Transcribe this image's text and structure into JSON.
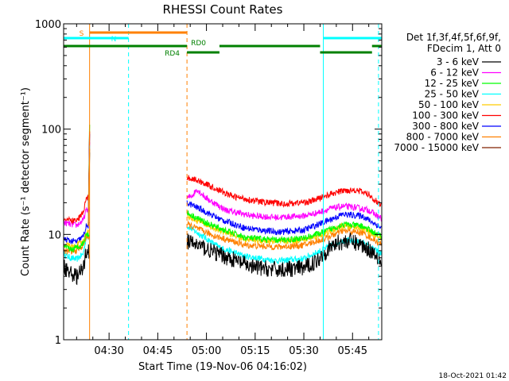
{
  "chart_data": {
    "type": "line",
    "title": "RHESSI Count Rates",
    "xlabel": "Start Time (19-Nov-06 04:16:02)",
    "ylabel": "Count Rate (s⁻¹ detector segment⁻¹)",
    "ylog": true,
    "ylim": [
      1,
      1000
    ],
    "xlim_minutes": [
      0,
      98
    ],
    "x_ticks": [
      "04:30",
      "04:45",
      "05:00",
      "05:15",
      "05:30",
      "05:45"
    ],
    "y_ticks": [
      "1",
      "10",
      "100",
      "1000"
    ],
    "legend_header": [
      "Det 1f,3f,4f,5f,6f,9f,",
      "FDecim 1, Att 0"
    ],
    "legend_position": "top-right, outside plot",
    "timestamp": "18-Oct-2021 01:42",
    "data_gap_minutes": [
      8,
      38
    ],
    "series": [
      {
        "name": "3 - 6 keV",
        "color": "#000000",
        "x": [
          0,
          2,
          4,
          6,
          7,
          38,
          42,
          46,
          52,
          58,
          66,
          74,
          78,
          80,
          84,
          88,
          92,
          96,
          98
        ],
        "y": [
          5,
          4.3,
          4.0,
          4.6,
          7,
          8.6,
          7.8,
          6.8,
          5.8,
          4.9,
          4.6,
          4.8,
          5.6,
          6.6,
          8.3,
          8.7,
          7.9,
          6.6,
          5.6
        ]
      },
      {
        "name": "6 - 12 keV",
        "color": "#ff00ff",
        "x": [
          0,
          2,
          4,
          6,
          7,
          38,
          40,
          41,
          44,
          50,
          58,
          66,
          74,
          78,
          82,
          86,
          90,
          94,
          98
        ],
        "y": [
          13,
          12.5,
          12.2,
          13.5,
          17,
          22,
          24,
          27,
          22,
          17,
          15,
          14.5,
          15,
          16,
          17.5,
          18.5,
          18,
          17,
          14
        ]
      },
      {
        "name": "12 - 25 keV",
        "color": "#00ff00",
        "x": [
          0,
          3,
          6,
          7,
          38,
          46,
          56,
          66,
          74,
          80,
          86,
          92,
          98
        ],
        "y": [
          7.5,
          7.2,
          8.2,
          10,
          16,
          12,
          9.3,
          8.8,
          9.2,
          10.5,
          12.5,
          12,
          9.5
        ]
      },
      {
        "name": "25 - 50 keV",
        "color": "#00ffff",
        "x": [
          0,
          2,
          4,
          6,
          7,
          38,
          42,
          48,
          56,
          66,
          74,
          80,
          86,
          92,
          98
        ],
        "y": [
          6.5,
          6.0,
          5.8,
          6.5,
          9.5,
          12,
          10,
          7.5,
          6.2,
          5.6,
          5.9,
          7.2,
          8.8,
          8.4,
          6.5
        ]
      },
      {
        "name": "50 - 100 keV",
        "color": "#ffcc00",
        "x": [
          0,
          3,
          6,
          7,
          38,
          46,
          56,
          66,
          74,
          80,
          86,
          92,
          98
        ],
        "y": [
          8,
          7.6,
          8.5,
          10.5,
          15,
          11.5,
          9,
          8.5,
          8.9,
          10,
          12,
          11.5,
          9
        ]
      },
      {
        "name": "100 - 300 keV",
        "color": "#ff0000",
        "x": [
          0,
          2,
          4,
          6,
          7,
          38,
          42,
          44,
          46,
          52,
          60,
          68,
          76,
          82,
          86,
          90,
          94,
          98
        ],
        "y": [
          14,
          13.5,
          13.5,
          16,
          22,
          35,
          32,
          30,
          28,
          23,
          20.5,
          19.5,
          20.5,
          24,
          26,
          26.5,
          24,
          18.5
        ]
      },
      {
        "name": "300 - 800 keV",
        "color": "#0000ff",
        "x": [
          0,
          2,
          4,
          6,
          7,
          38,
          42,
          48,
          56,
          66,
          74,
          80,
          86,
          92,
          98
        ],
        "y": [
          9,
          8.7,
          8.5,
          9.5,
          12,
          20,
          17.5,
          14,
          11.5,
          10.5,
          11,
          13,
          15.5,
          15,
          11.5
        ]
      },
      {
        "name": "800 - 7000 keV",
        "color": "#ff8000",
        "x": [
          0,
          3,
          6,
          7,
          38,
          46,
          56,
          66,
          74,
          80,
          86,
          92,
          98
        ],
        "y": [
          7,
          6.8,
          7.8,
          9.5,
          12.5,
          9.8,
          7.9,
          7.6,
          7.9,
          9,
          10.8,
          10.4,
          8
        ]
      },
      {
        "name": "7000 - 15000 keV",
        "color": "#802000",
        "x": [
          0,
          6
        ],
        "y": [
          1,
          1
        ]
      }
    ],
    "attenuator_bars": [
      {
        "label": "S",
        "color": "#ff8000",
        "row": 1,
        "start": 8,
        "end": 38
      },
      {
        "label": "N",
        "color": "#00ffff",
        "row": 2,
        "start": 0,
        "end": 20
      },
      {
        "label": "",
        "color": "#00ffff",
        "row": 2,
        "start": 80,
        "end": 98
      },
      {
        "label": "RD0",
        "color": "#008000",
        "row": 3,
        "start": 0,
        "end": 38
      },
      {
        "label": "",
        "color": "#008000",
        "row": 3,
        "start": 48,
        "end": 79
      },
      {
        "label": "RD4",
        "color": "#008000",
        "row": 4,
        "start": 38,
        "end": 48
      },
      {
        "label": "",
        "color": "#008000",
        "row": 4,
        "start": 79,
        "end": 95
      },
      {
        "label": "",
        "color": "#008000",
        "row": 3,
        "start": 95,
        "end": 98
      }
    ],
    "vlines": [
      {
        "x": 0,
        "color": "#00ffff",
        "dash": false
      },
      {
        "x": 8,
        "color": "#ff8000",
        "dash": false
      },
      {
        "x": 20,
        "color": "#00ffff",
        "dash": true
      },
      {
        "x": 38,
        "color": "#ff8000",
        "dash": true
      },
      {
        "x": 80,
        "color": "#00ffff",
        "dash": false
      },
      {
        "x": 97,
        "color": "#00ffff",
        "dash": true
      }
    ]
  }
}
